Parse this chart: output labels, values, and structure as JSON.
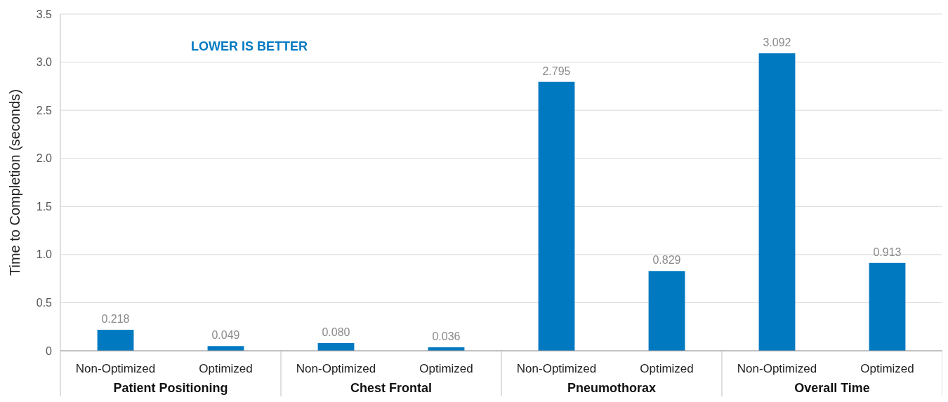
{
  "chart_data": {
    "type": "bar",
    "ylabel": "Time to Completion (seconds)",
    "categories": [
      "Non-Optimized",
      "Optimized",
      "Non-Optimized",
      "Optimized",
      "Non-Optimized",
      "Optimized",
      "Non-Optimized",
      "Optimized"
    ],
    "values": [
      0.218,
      0.049,
      0.08,
      0.036,
      2.795,
      0.829,
      3.092,
      0.913
    ],
    "color": "#0079c1",
    "ylim": [
      0,
      3.5
    ],
    "yticks": [
      0,
      0.5,
      {
        "value": 1,
        "label": "1.0"
      },
      1.5,
      {
        "value": 2,
        "label": "2.0"
      },
      2.5,
      {
        "value": 3,
        "label": "3.0"
      },
      3.5
    ],
    "grid": "y",
    "value_labels": [
      "0.218",
      "0.049",
      "0.080",
      "0.036",
      "2.795",
      "0.829",
      "3.092",
      "0.913"
    ],
    "annotations": [
      "LOWER IS BETTER",
      "Patient Positioning",
      "Chest Frontal",
      "Pneumothorax",
      "Overall Time"
    ]
  }
}
